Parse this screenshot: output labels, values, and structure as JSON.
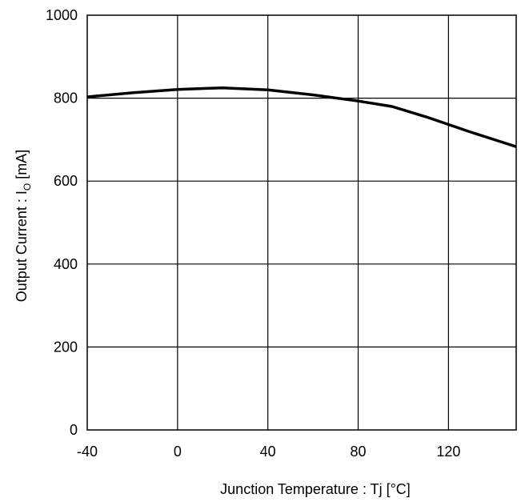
{
  "chart_data": {
    "type": "line",
    "title": "",
    "xlabel": "Junction Temperature : Tj [°C]",
    "ylabel": "Output Current : I",
    "ylabel_subscript": "O",
    "ylabel_unit": " [mA]",
    "xlim": [
      -40,
      150
    ],
    "ylim": [
      0,
      1000
    ],
    "x_ticks": [
      -40,
      0,
      40,
      80,
      120
    ],
    "x_tick_labels": [
      "-40",
      "0",
      "40",
      "80",
      "120"
    ],
    "y_ticks": [
      0,
      200,
      400,
      600,
      800,
      1000
    ],
    "y_tick_labels": [
      "0",
      "200",
      "400",
      "600",
      "800",
      "1000"
    ],
    "grid": true,
    "legend": false,
    "line_color": "#000000",
    "series": [
      {
        "x": [
          -40,
          -20,
          0,
          20,
          40,
          60,
          80,
          95,
          110,
          130,
          150
        ],
        "values": [
          803,
          813,
          821,
          825,
          820,
          808,
          793,
          780,
          755,
          718,
          683
        ]
      }
    ]
  }
}
